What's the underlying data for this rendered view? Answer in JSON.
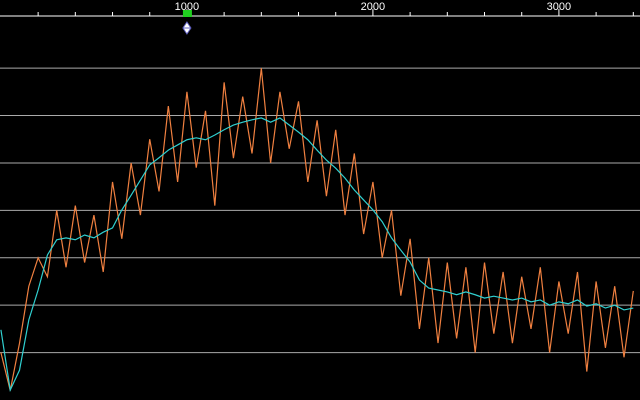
{
  "chart_data": {
    "type": "line",
    "x": [
      0,
      50,
      100,
      150,
      200,
      250,
      300,
      350,
      400,
      450,
      500,
      550,
      600,
      650,
      700,
      750,
      800,
      850,
      900,
      950,
      1000,
      1050,
      1100,
      1150,
      1200,
      1250,
      1300,
      1350,
      1400,
      1450,
      1500,
      1550,
      1600,
      1650,
      1700,
      1750,
      1800,
      1850,
      1900,
      1950,
      2000,
      2050,
      2100,
      2150,
      2200,
      2250,
      2300,
      2350,
      2400,
      2450,
      2500,
      2550,
      2600,
      2650,
      2700,
      2750,
      2800,
      2850,
      2900,
      2950,
      3000,
      3050,
      3100,
      3150,
      3200,
      3250,
      3300,
      3350,
      3400
    ],
    "series": [
      {
        "color": "#f08040",
        "values": [
          1.0,
          0.2,
          1.2,
          2.4,
          3.0,
          2.6,
          4.0,
          2.8,
          4.1,
          2.9,
          3.9,
          2.7,
          4.6,
          3.4,
          5.0,
          3.9,
          5.5,
          4.4,
          6.2,
          4.6,
          6.5,
          4.9,
          6.1,
          4.1,
          6.7,
          5.1,
          6.4,
          5.2,
          7.0,
          5.0,
          6.5,
          5.3,
          6.3,
          4.6,
          5.9,
          4.3,
          5.7,
          3.9,
          5.2,
          3.5,
          4.6,
          3.0,
          4.0,
          2.2,
          3.4,
          1.5,
          3.0,
          1.2,
          2.9,
          1.3,
          2.8,
          1.0,
          2.9,
          1.4,
          2.7,
          1.2,
          2.6,
          1.5,
          2.8,
          1.0,
          2.5,
          1.4,
          2.7,
          0.6,
          2.5,
          1.1,
          2.4,
          0.9,
          2.3
        ]
      },
      {
        "color": "#30d0d0",
        "values": [
          1.48,
          0.21,
          0.63,
          1.69,
          2.32,
          3.06,
          3.38,
          3.42,
          3.38,
          3.48,
          3.42,
          3.54,
          3.63,
          4.01,
          4.32,
          4.64,
          4.96,
          5.11,
          5.27,
          5.38,
          5.49,
          5.53,
          5.49,
          5.59,
          5.7,
          5.8,
          5.86,
          5.91,
          5.95,
          5.86,
          5.95,
          5.8,
          5.65,
          5.49,
          5.27,
          5.06,
          4.89,
          4.68,
          4.43,
          4.22,
          4.01,
          3.76,
          3.42,
          3.16,
          2.91,
          2.53,
          2.36,
          2.32,
          2.28,
          2.22,
          2.28,
          2.22,
          2.15,
          2.19,
          2.15,
          2.11,
          2.15,
          2.07,
          2.11,
          2.0,
          2.07,
          2.03,
          2.11,
          1.98,
          2.03,
          1.94,
          2.0,
          1.9,
          1.94
        ]
      }
    ],
    "xlim": [
      -5,
      3436
    ],
    "ylim": [
      0,
      8.1
    ],
    "xticks": [
      1000,
      2000,
      3000
    ],
    "xminor": [
      200,
      400,
      600,
      800,
      1200,
      1400,
      1600,
      1800,
      2200,
      2400,
      2600,
      2800,
      3200,
      3400
    ],
    "ygrid": [
      1,
      2,
      3,
      4,
      5,
      6,
      7
    ],
    "marker": 1000
  }
}
